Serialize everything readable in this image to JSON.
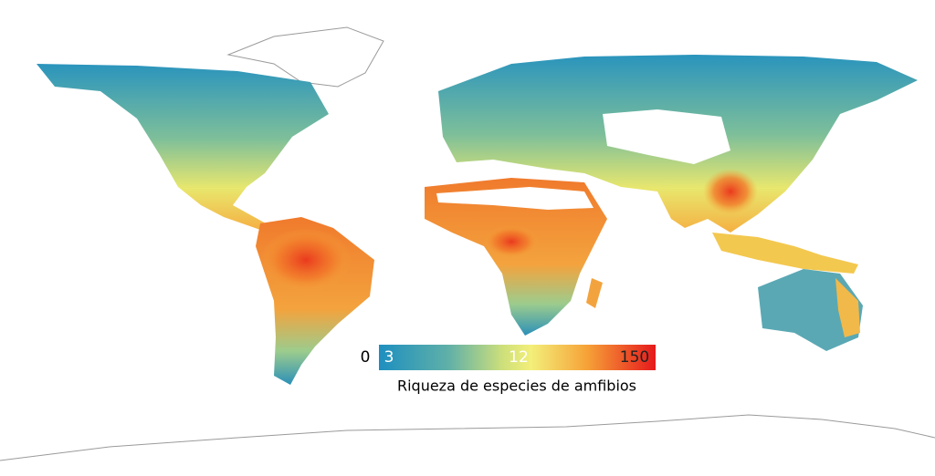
{
  "legend": {
    "ticks": [
      "0",
      "3",
      "12",
      "150"
    ],
    "title": "Riqueza de especies de amfibios"
  }
}
